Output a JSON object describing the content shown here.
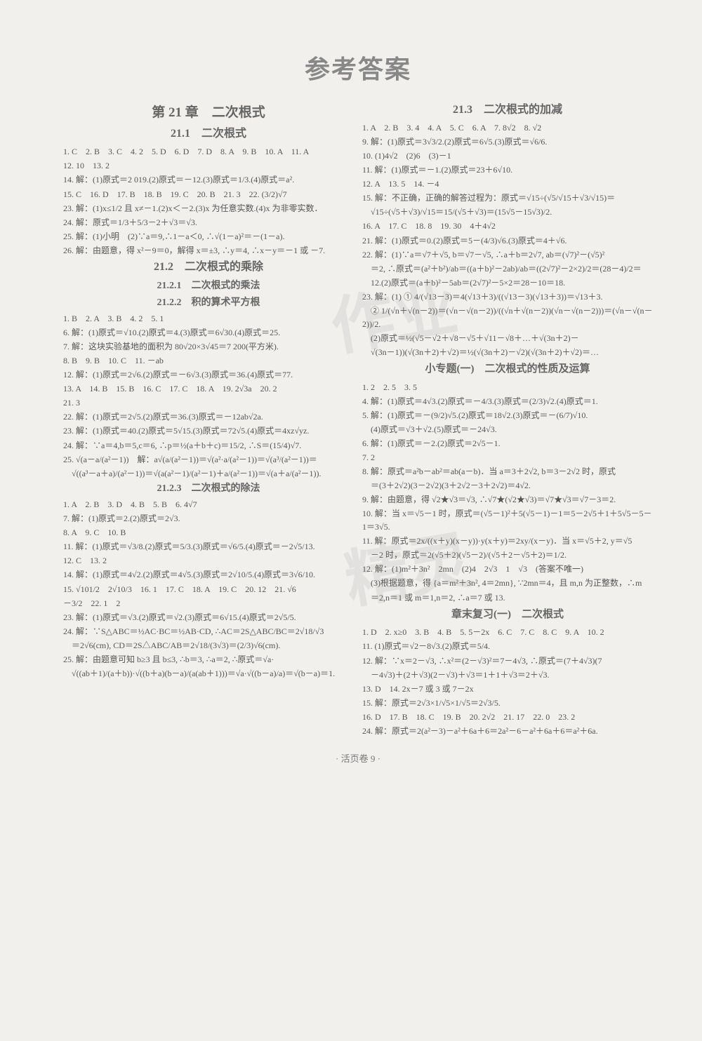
{
  "page": {
    "main_title": "参考答案",
    "footer": "· 活页卷 9 ·",
    "background": "#f2f0ed",
    "text_color": "#555"
  },
  "watermarks": {
    "w1": "作业",
    "w2": "精灵"
  },
  "left": {
    "chapter": "第 21 章　二次根式",
    "s21_1": "21.1　二次根式",
    "s21_1_lines": [
      "1. C　2. B　3. C　4. 2　5. D　6. D　7. D　8. A　9. B　10. A　11. A",
      "12. 10　13. 2",
      "14. 解：(1)原式＝2 019.(2)原式＝－12.(3)原式＝1/3.(4)原式＝a².",
      "15. C　16. D　17. B　18. B　19. C　20. B　21. 3　22. (3/2)√7",
      "23. 解：(1)x≤1/2 且 x≠－1.(2)x＜－2.(3)x 为任意实数.(4)x 为非零实数．",
      "24. 解：原式＝1/3＋5/3－2＋√3＝√3.",
      "25. 解：(1)小明　(2)∵a＝9,∴1－a＜0, ∴√(1－a)²＝－(1－a).",
      "26. 解：由题意，得 x²－9＝0，解得 x＝±3, ∴y＝4, ∴x－y＝－1 或 －7."
    ],
    "s21_2": "21.2　二次根式的乘除",
    "s21_2_1": "21.2.1　二次根式的乘法",
    "s21_2_2": "21.2.2　积的算术平方根",
    "s21_2_lines": [
      "1. B　2. A　3. B　4. 2　5. 1",
      "6. 解：(1)原式＝√10.(2)原式＝4.(3)原式＝6√30.(4)原式＝25.",
      "7. 解：这块实验基地的面积为 80√20×3√45＝7 200(平方米).",
      "8. B　9. B　10. C　11. －ab",
      "12. 解：(1)原式＝2√6.(2)原式＝－6√3.(3)原式＝36.(4)原式＝77.",
      "13. A　14. B　15. B　16. C　17. C　18. A　19. 2√3a　20. 2",
      "21. 3",
      "22. 解：(1)原式＝2√5.(2)原式＝36.(3)原式＝－12ab√2a.",
      "23. 解：(1)原式＝40.(2)原式＝5√15.(3)原式＝72√5.(4)原式＝4xz√yz.",
      "24. 解：∵a＝4,b＝5,c＝6, ∴p＝½(a＋b＋c)＝15/2, ∴S＝(15/4)√7.",
      "25. √(a－a/(a²－1))　解：a√(a/(a²－1))＝√(a²·a/(a²－1))＝√(a³/(a²－1))＝",
      "　√((a³－a＋a)/(a²－1))＝√(a(a²－1)/(a²－1)＋a/(a²－1))＝√(a＋a/(a²－1))."
    ],
    "s21_2_3": "21.2.3　二次根式的除法",
    "s21_2_3_lines": [
      "1. A　2. B　3. D　4. B　5. B　6. 4√7",
      "7. 解：(1)原式＝2.(2)原式＝2√3.",
      "8. A　9. C　10. B",
      "11. 解：(1)原式＝√3/8.(2)原式＝5/3.(3)原式＝√6/5.(4)原式＝－2√5/13.",
      "12. C　13. 2",
      "14. 解：(1)原式＝4√2.(2)原式＝4√5.(3)原式＝2√10/5.(4)原式＝3√6/10.",
      "15. √101/2　2√10/3　16. 1　17. C　18. A　19. C　20. 12　21. √6",
      "－3/2　22. 1　2",
      "23. 解：(1)原式＝√3.(2)原式＝√2.(3)原式＝6√15.(4)原式＝2√5/5.",
      "24. 解：∵S△ABC＝½AC·BC＝½AB·CD, ∴AC＝2S△ABC/BC＝2√18/√3",
      "　＝2√6(cm), CD＝2S△ABC/AB＝2√18/(3√3)＝(2/3)√6(cm).",
      "25. 解：由题意可知 b≥3 且 b≤3, ∴b＝3, ∴a＝2, ∴原式＝√a·",
      "　√((ab＋1)/(a＋b))·√((b＋a)(b－a)/(a(ab＋1)))＝√a·√((b－a)/a)＝√(b－a)＝1."
    ]
  },
  "right": {
    "s21_3": "21.3　二次根式的加减",
    "s21_3_lines": [
      "1. A　2. B　3. 4　4. A　5. C　6. A　7. 8√2　8. √2",
      "9. 解：(1)原式＝3√3/2.(2)原式＝6√5.(3)原式＝√6/6.",
      "10. (1)4√2　(2)6　(3)－1",
      "11. 解：(1)原式＝－1.(2)原式＝23＋6√10.",
      "12. A　13. 5　14. －4",
      "15. 解：不正确，正确的解答过程为：原式＝√15÷(√5/√15＋√3/√15)＝",
      "　√15÷(√5＋√3)/√15＝15/(√5＋√3)＝(15√5－15√3)/2.",
      "16. A　17. C　18. 8　19. 30　4＋4√2",
      "21. 解：(1)原式＝0.(2)原式＝5－(4/3)√6.(3)原式＝4＋√6.",
      "22. 解：(1)∵a＝√7＋√5, b＝√7－√5, ∴a＋b＝2√7, ab＝(√7)²－(√5)²",
      "　＝2, ∴原式＝(a²＋b²)/ab＝((a＋b)²－2ab)/ab＝((2√7)²－2×2)/2＝(28－4)/2＝",
      "　12.(2)原式＝(a＋b)²－5ab＝(2√7)²－5×2＝28－10＝18.",
      "23. 解：(1) ① 4/(√13－3)＝4(√13＋3)/((√13－3)(√13＋3))＝√13＋3.",
      "　② 1/(√n＋√(n－2))＝(√n－√(n－2))/((√n＋√(n－2))(√n－√(n－2)))＝(√n－√(n－2))/2.",
      "　(2)原式＝½(√5－√2＋√8－√5＋√11－√8＋…＋√(3n＋2)－",
      "　√(3n－1))(√(3n＋2)＋√2)＝½(√(3n＋2)－√2)(√(3n＋2)＋√2)＝…"
    ],
    "small_topic": "小专题(一)　二次根式的性质及运算",
    "small_lines": [
      "1. 2　2. 5　3. 5",
      "4. 解：(1)原式＝4√3.(2)原式＝－4/3.(3)原式＝(2/3)√2.(4)原式＝1.",
      "5. 解：(1)原式＝－(9/2)√5.(2)原式＝18√2.(3)原式＝－(6/7)√10.",
      "　(4)原式＝√3＋√2.(5)原式＝－24√3.",
      "6. 解：(1)原式＝－2.(2)原式＝2√5－1.",
      "7. 2",
      "8. 解：原式＝a²b－ab²＝ab(a－b)．当 a＝3＋2√2, b＝3－2√2 时，原式",
      "　＝(3＋2√2)(3－2√2)(3＋2√2－3＋2√2)＝4√2.",
      "9. 解：由题意，得 √2★√3＝√3, ∴√7★(√2★√3)＝√7★√3＝√7－3＝2.",
      "10. 解：当 x＝√5－1 时，原式＝(√5－1)²＋5(√5－1)－1＝5－2√5＋1＋5√5－5－1＝3√5.",
      "11. 解：原式＝2x/((x＋y)(x－y))·y(x＋y)＝2xy/(x－y)．当 x＝√5＋2, y＝√5",
      "　－2 时，原式＝2(√5＋2)(√5－2)/(√5＋2－√5＋2)＝1/2.",
      "12. 解：(1)m²＋3n²　2mn　(2)4　2√3　1　√3　(答案不唯一)",
      "　(3)根据题意，得 {a＝m²＋3n², 4＝2mn}, ∵2mn＝4，且 m,n 为正整数，∴m",
      "　＝2,n＝1 或 m＝1,n＝2, ∴a＝7 或 13."
    ],
    "review_title": "章末复习(一)　二次根式",
    "review_lines": [
      "1. D　2. x≥0　3. B　4. B　5. 5－2x　6. C　7. C　8. C　9. A　10. 2",
      "11. (1)原式＝√2－8√3.(2)原式＝5/4.",
      "12. 解：∵x＝2－√3, ∴x²＝(2－√3)²＝7－4√3, ∴原式＝(7＋4√3)(7",
      "　－4√3)＋(2＋√3)(2－√3)＋√3＝1＋1＋√3＝2＋√3.",
      "13. D　14. 2x－7 或 3 或 7－2x",
      "15. 解：原式＝2√3×1/√5×1/√5＝2√3/5.",
      "16. D　17. B　18. C　19. B　20. 2√2　21. 17　22. 0　23. 2",
      "24. 解：原式＝2(a²－3)－a²＋6a＋6＝2a²－6－a²＋6a＋6＝a²＋6a."
    ]
  }
}
